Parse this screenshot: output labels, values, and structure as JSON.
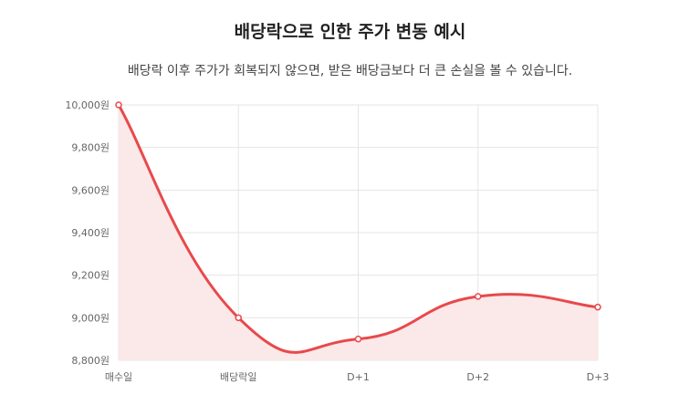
{
  "header": {
    "title": "배당락으로 인한 주가 변동 예시",
    "subtitle": "배당락 이후 주가가 회복되지 않으면, 받은 배당금보다 더 큰 손실을 볼 수 있습니다."
  },
  "colors": {
    "line": "#e8494b",
    "fill": "#fbe8e8",
    "grid": "#e5e5e5",
    "axis_text": "#666666"
  },
  "chart_data": {
    "type": "area",
    "title": "배당락으로 인한 주가 변동 예시",
    "subtitle": "배당락 이후 주가가 회복되지 않으면, 받은 배당금보다 더 큰 손실을 볼 수 있습니다.",
    "categories": [
      "매수일",
      "배당락일",
      "D+1",
      "D+2",
      "D+3"
    ],
    "series": [
      {
        "values": [
          10000,
          9000,
          8900,
          9100,
          9050
        ]
      }
    ],
    "ylim": [
      8800,
      10000
    ],
    "yticks": [
      8800,
      9000,
      9200,
      9400,
      9600,
      9800,
      10000
    ],
    "ytick_labels": [
      "8,800원",
      "9,000원",
      "9,200원",
      "9,400원",
      "9,600원",
      "9,800원",
      "10,000원"
    ],
    "grid": true,
    "legend": "none"
  }
}
